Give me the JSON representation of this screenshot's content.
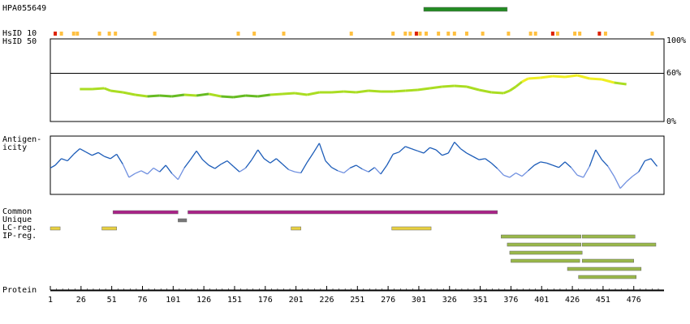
{
  "labels": {
    "antibody": "HPA055649",
    "hsid10": "HsID 10",
    "hsid50": "HsID 50",
    "antigenicity_line1": "Antigen-",
    "antigenicity_line2": "icity",
    "common": "Common",
    "unique": "Unique",
    "lc_reg": "LC-reg.",
    "ip_reg": "IP-reg.",
    "protein": "Protein"
  },
  "colors": {
    "antibody_bar": "#228b22",
    "hsid_orange": "#ffc040",
    "hsid_red": "#dd2200",
    "identity_green": "#66bb22",
    "identity_lime": "#aadd22",
    "identity_yellow": "#eeee22",
    "antigen_dark": "#1c5cb8",
    "antigen_light": "#7090e0",
    "common": "#aa2288",
    "unique": "#777777",
    "lc_reg": "#e8d040",
    "ip_reg": "#9ab84a"
  },
  "chart_data": {
    "type": "protein-feature-map",
    "protein_length": 496,
    "x_axis": {
      "ticks": [
        1,
        26,
        51,
        76,
        101,
        126,
        151,
        176,
        201,
        226,
        251,
        276,
        301,
        326,
        351,
        376,
        401,
        426,
        451,
        476
      ]
    },
    "antibody_region": [
      305,
      373
    ],
    "hsid10_marks": [
      {
        "pos": 5,
        "level": "high"
      },
      {
        "pos": 10,
        "level": "low"
      },
      {
        "pos": 20,
        "level": "low"
      },
      {
        "pos": 23,
        "level": "low"
      },
      {
        "pos": 41,
        "level": "low"
      },
      {
        "pos": 49,
        "level": "low"
      },
      {
        "pos": 54,
        "level": "low"
      },
      {
        "pos": 86,
        "level": "low"
      },
      {
        "pos": 154,
        "level": "low"
      },
      {
        "pos": 167,
        "level": "low"
      },
      {
        "pos": 191,
        "level": "low"
      },
      {
        "pos": 246,
        "level": "low"
      },
      {
        "pos": 280,
        "level": "low"
      },
      {
        "pos": 290,
        "level": "low"
      },
      {
        "pos": 294,
        "level": "low"
      },
      {
        "pos": 299,
        "level": "high"
      },
      {
        "pos": 302,
        "level": "low"
      },
      {
        "pos": 307,
        "level": "low"
      },
      {
        "pos": 317,
        "level": "low"
      },
      {
        "pos": 325,
        "level": "low"
      },
      {
        "pos": 330,
        "level": "low"
      },
      {
        "pos": 340,
        "level": "low"
      },
      {
        "pos": 353,
        "level": "low"
      },
      {
        "pos": 374,
        "level": "low"
      },
      {
        "pos": 392,
        "level": "low"
      },
      {
        "pos": 396,
        "level": "low"
      },
      {
        "pos": 410,
        "level": "high"
      },
      {
        "pos": 414,
        "level": "low"
      },
      {
        "pos": 428,
        "level": "low"
      },
      {
        "pos": 432,
        "level": "low"
      },
      {
        "pos": 448,
        "level": "high"
      },
      {
        "pos": 453,
        "level": "low"
      },
      {
        "pos": 491,
        "level": "low"
      }
    ],
    "identity_axis": {
      "ticks": [
        "100%",
        "60%",
        "0%"
      ],
      "ylim": [
        0,
        100
      ],
      "threshold": 60
    },
    "identity_profile": [
      [
        25,
        39
      ],
      [
        35,
        39
      ],
      [
        45,
        40
      ],
      [
        50,
        37
      ],
      [
        60,
        35
      ],
      [
        70,
        32
      ],
      [
        80,
        30
      ],
      [
        90,
        31
      ],
      [
        100,
        30
      ],
      [
        110,
        32
      ],
      [
        120,
        31
      ],
      [
        130,
        33
      ],
      [
        140,
        30
      ],
      [
        150,
        29
      ],
      [
        160,
        31
      ],
      [
        170,
        30
      ],
      [
        180,
        32
      ],
      [
        190,
        33
      ],
      [
        200,
        34
      ],
      [
        210,
        32
      ],
      [
        220,
        35
      ],
      [
        230,
        35
      ],
      [
        240,
        36
      ],
      [
        250,
        35
      ],
      [
        260,
        37
      ],
      [
        270,
        36
      ],
      [
        280,
        36
      ],
      [
        290,
        37
      ],
      [
        300,
        38
      ],
      [
        310,
        40
      ],
      [
        320,
        42
      ],
      [
        330,
        43
      ],
      [
        340,
        42
      ],
      [
        350,
        38
      ],
      [
        360,
        35
      ],
      [
        370,
        34
      ],
      [
        375,
        37
      ],
      [
        380,
        42
      ],
      [
        385,
        48
      ],
      [
        390,
        52
      ],
      [
        400,
        53
      ],
      [
        410,
        55
      ],
      [
        420,
        54
      ],
      [
        430,
        56
      ],
      [
        440,
        52
      ],
      [
        450,
        51
      ],
      [
        460,
        47
      ],
      [
        470,
        45
      ]
    ],
    "antigenicity_profile": [
      [
        1,
        45
      ],
      [
        5,
        50
      ],
      [
        10,
        62
      ],
      [
        15,
        58
      ],
      [
        20,
        70
      ],
      [
        25,
        80
      ],
      [
        30,
        74
      ],
      [
        35,
        68
      ],
      [
        40,
        73
      ],
      [
        45,
        66
      ],
      [
        50,
        62
      ],
      [
        55,
        70
      ],
      [
        60,
        52
      ],
      [
        65,
        28
      ],
      [
        70,
        35
      ],
      [
        75,
        40
      ],
      [
        80,
        34
      ],
      [
        85,
        45
      ],
      [
        90,
        38
      ],
      [
        95,
        50
      ],
      [
        100,
        35
      ],
      [
        105,
        24
      ],
      [
        110,
        45
      ],
      [
        115,
        60
      ],
      [
        120,
        76
      ],
      [
        125,
        60
      ],
      [
        130,
        50
      ],
      [
        135,
        44
      ],
      [
        140,
        52
      ],
      [
        145,
        58
      ],
      [
        150,
        48
      ],
      [
        155,
        38
      ],
      [
        160,
        45
      ],
      [
        165,
        60
      ],
      [
        170,
        78
      ],
      [
        175,
        62
      ],
      [
        180,
        54
      ],
      [
        185,
        62
      ],
      [
        190,
        52
      ],
      [
        195,
        42
      ],
      [
        200,
        38
      ],
      [
        205,
        36
      ],
      [
        210,
        55
      ],
      [
        215,
        72
      ],
      [
        220,
        90
      ],
      [
        225,
        58
      ],
      [
        230,
        46
      ],
      [
        235,
        40
      ],
      [
        240,
        36
      ],
      [
        245,
        45
      ],
      [
        250,
        50
      ],
      [
        255,
        43
      ],
      [
        260,
        38
      ],
      [
        265,
        46
      ],
      [
        270,
        34
      ],
      [
        275,
        50
      ],
      [
        280,
        70
      ],
      [
        285,
        74
      ],
      [
        290,
        84
      ],
      [
        295,
        80
      ],
      [
        300,
        76
      ],
      [
        305,
        72
      ],
      [
        310,
        82
      ],
      [
        315,
        78
      ],
      [
        320,
        68
      ],
      [
        325,
        72
      ],
      [
        330,
        92
      ],
      [
        335,
        80
      ],
      [
        340,
        72
      ],
      [
        345,
        66
      ],
      [
        350,
        60
      ],
      [
        355,
        62
      ],
      [
        360,
        54
      ],
      [
        365,
        44
      ],
      [
        370,
        32
      ],
      [
        375,
        28
      ],
      [
        380,
        36
      ],
      [
        385,
        30
      ],
      [
        390,
        40
      ],
      [
        395,
        50
      ],
      [
        400,
        56
      ],
      [
        405,
        54
      ],
      [
        410,
        50
      ],
      [
        415,
        46
      ],
      [
        420,
        56
      ],
      [
        425,
        46
      ],
      [
        430,
        32
      ],
      [
        435,
        28
      ],
      [
        440,
        48
      ],
      [
        445,
        78
      ],
      [
        450,
        60
      ],
      [
        455,
        48
      ],
      [
        460,
        30
      ],
      [
        465,
        8
      ],
      [
        470,
        20
      ],
      [
        475,
        30
      ],
      [
        480,
        38
      ],
      [
        485,
        58
      ],
      [
        490,
        62
      ],
      [
        495,
        48
      ]
    ],
    "common_segments": [
      [
        52,
        105
      ],
      [
        113,
        365
      ]
    ],
    "unique_segments": [
      [
        105,
        112
      ]
    ],
    "lc_segments": [
      [
        1,
        9
      ],
      [
        43,
        55
      ],
      [
        197,
        205
      ],
      [
        279,
        311
      ]
    ],
    "ip_segments": [
      {
        "row": 0,
        "start": 368,
        "end": 433
      },
      {
        "row": 0,
        "start": 434,
        "end": 477
      },
      {
        "row": 1,
        "start": 373,
        "end": 433
      },
      {
        "row": 1,
        "start": 434,
        "end": 494
      },
      {
        "row": 2,
        "start": 375,
        "end": 434
      },
      {
        "row": 3,
        "start": 376,
        "end": 432
      },
      {
        "row": 3,
        "start": 434,
        "end": 476
      },
      {
        "row": 4,
        "start": 422,
        "end": 482
      },
      {
        "row": 5,
        "start": 431,
        "end": 478
      }
    ]
  }
}
